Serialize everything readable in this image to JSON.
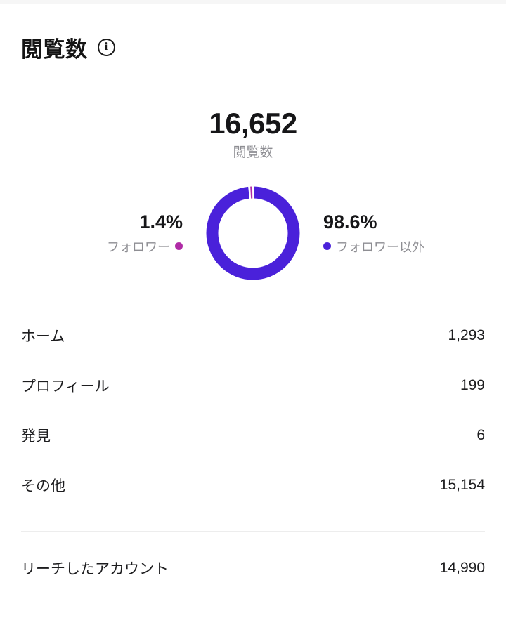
{
  "header": {
    "title": "閲覧数",
    "info_glyph": "i"
  },
  "summary": {
    "value": "16,652",
    "label": "閲覧数"
  },
  "chart_data": {
    "type": "pie",
    "donut": true,
    "title": "閲覧数",
    "total_label": "16,652",
    "slices": [
      {
        "label": "フォロワー以外",
        "percent": 98.6,
        "color": "#4a21da"
      },
      {
        "label": "フォロワー",
        "percent": 1.4,
        "color": "#b02ba6"
      }
    ],
    "gap_color": "#ffffff",
    "legend_position": "sides"
  },
  "legend": {
    "left": {
      "percent": "1.4%",
      "label": "フォロワー",
      "dot_color": "#b02ba6"
    },
    "right": {
      "percent": "98.6%",
      "label": "フォロワー以外",
      "dot_color": "#4a21da"
    }
  },
  "breakdown": {
    "rows": [
      {
        "label": "ホーム",
        "value": "1,293"
      },
      {
        "label": "プロフィール",
        "value": "199"
      },
      {
        "label": "発見",
        "value": "6"
      },
      {
        "label": "その他",
        "value": "15,154"
      }
    ]
  },
  "footer": {
    "label": "リーチしたアカウント",
    "value": "14,990"
  }
}
